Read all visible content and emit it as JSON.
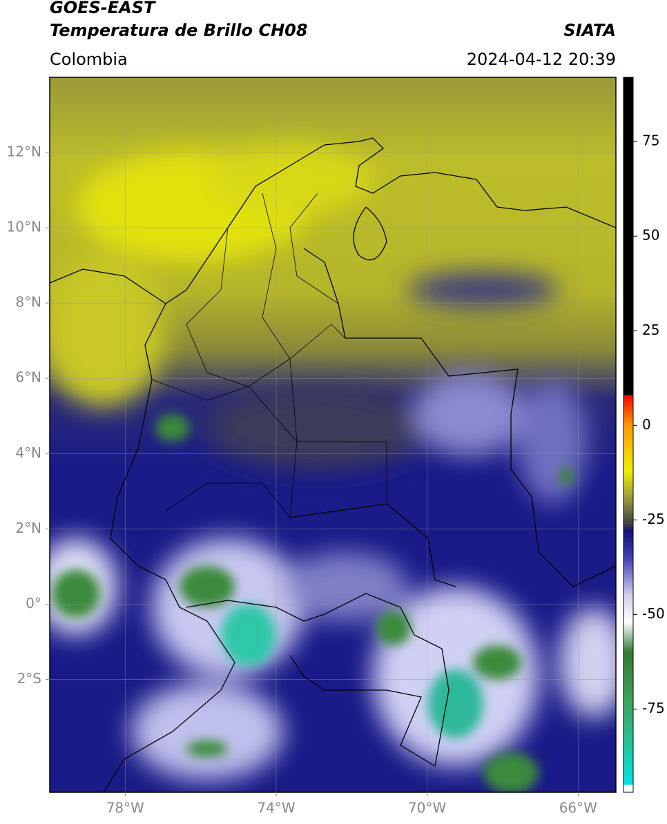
{
  "chart_data": {
    "type": "map",
    "title": "GOES-EAST",
    "subtitle": "Temperatura de Brillo CH08",
    "region": "Colombia",
    "agency": "SIATA",
    "datetime": "2024-04-12 20:39",
    "xlim": [
      -80,
      -65
    ],
    "ylim": [
      -5,
      14
    ],
    "xticks": [
      {
        "value": -78,
        "label": "78°W"
      },
      {
        "value": -74,
        "label": "74°W"
      },
      {
        "value": -70,
        "label": "70°W"
      },
      {
        "value": -66,
        "label": "66°W"
      }
    ],
    "yticks": [
      {
        "value": 12,
        "label": "12°N"
      },
      {
        "value": 10,
        "label": "10°N"
      },
      {
        "value": 8,
        "label": "8°N"
      },
      {
        "value": 6,
        "label": "6°N"
      },
      {
        "value": 4,
        "label": "4°N"
      },
      {
        "value": 2,
        "label": "2°N"
      },
      {
        "value": 0,
        "label": "0°"
      },
      {
        "value": -2,
        "label": "2°S"
      }
    ],
    "grid": true,
    "colorbar": {
      "range": [
        -97,
        92
      ],
      "ticks": [
        75,
        50,
        25,
        0,
        -25,
        -50,
        -75
      ],
      "colorscale": [
        [
          -97,
          "#ffffff"
        ],
        [
          -95,
          "#ffffff"
        ],
        [
          -95,
          "#00e5e5"
        ],
        [
          -85,
          "#1fc8a0"
        ],
        [
          -72,
          "#3fa05a"
        ],
        [
          -60,
          "#2e7d32"
        ],
        [
          -52,
          "#ffffff"
        ],
        [
          -45,
          "#d0d0f0"
        ],
        [
          -35,
          "#4040b0"
        ],
        [
          -28,
          "#101080"
        ],
        [
          -26,
          "#404040"
        ],
        [
          -20,
          "#909040"
        ],
        [
          -12,
          "#f0f000"
        ],
        [
          0,
          "#ff9900"
        ],
        [
          8,
          "#ff0000"
        ],
        [
          8,
          "#000000"
        ],
        [
          92,
          "#000000"
        ]
      ]
    }
  }
}
